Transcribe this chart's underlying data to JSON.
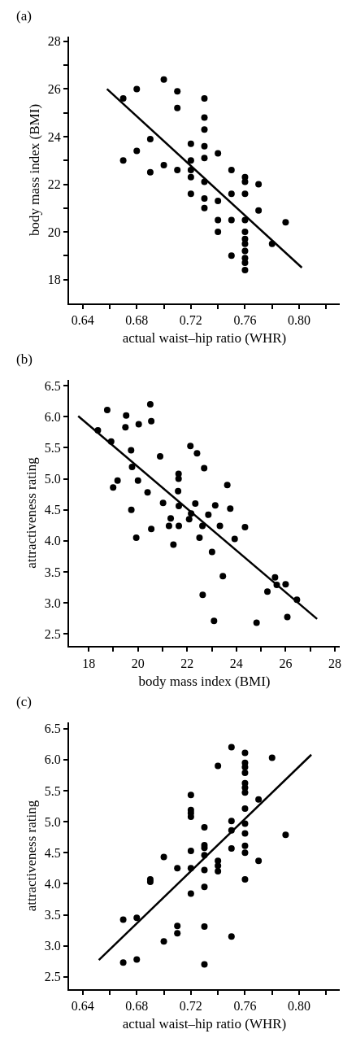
{
  "chart_data": [
    {
      "type": "scatter",
      "title": "(a)",
      "xlabel": "actual waist–hip ratio (WHR)",
      "ylabel": "body mass index (BMI)",
      "xlim": [
        0.63,
        0.83
      ],
      "ylim": [
        17,
        28.2
      ],
      "xticks": [
        0.64,
        {
          "value": 0.66,
          "label": null
        },
        0.68,
        {
          "value": 0.7,
          "label": null
        },
        0.72,
        {
          "value": 0.74,
          "label": null
        },
        0.76,
        {
          "value": 0.78,
          "label": null
        },
        {
          "value": 0.8,
          "label": "0.80"
        },
        {
          "value": 0.82,
          "label": null
        }
      ],
      "yticks": [
        18,
        {
          "value": 19,
          "label": null
        },
        20,
        {
          "value": 21,
          "label": null
        },
        22,
        {
          "value": 23,
          "label": null
        },
        24,
        {
          "value": 25,
          "label": null
        },
        26,
        {
          "value": 27,
          "label": null
        },
        28
      ],
      "marker": "circle",
      "series": [
        {
          "color": "#000000",
          "x": [
            0.67,
            0.67,
            0.68,
            0.68,
            0.69,
            0.69,
            0.7,
            0.7,
            0.71,
            0.71,
            0.71,
            0.72,
            0.72,
            0.72,
            0.72,
            0.72,
            0.73,
            0.73,
            0.73,
            0.73,
            0.73,
            0.73,
            0.73,
            0.73,
            0.74,
            0.74,
            0.74,
            0.74,
            0.75,
            0.75,
            0.75,
            0.75,
            0.76,
            0.76,
            0.76,
            0.76,
            0.76,
            0.76,
            0.76,
            0.76,
            0.76,
            0.76,
            0.76,
            0.77,
            0.77,
            0.78,
            0.79
          ],
          "values": [
            25.6,
            23.0,
            26.0,
            23.4,
            23.9,
            22.5,
            26.4,
            22.8,
            25.9,
            25.2,
            22.6,
            23.7,
            23.0,
            22.6,
            22.3,
            21.6,
            25.6,
            24.8,
            24.3,
            23.6,
            23.1,
            22.1,
            21.4,
            21.0,
            23.3,
            21.3,
            20.5,
            20.0,
            22.6,
            21.6,
            20.5,
            19.0,
            22.3,
            22.1,
            21.6,
            20.5,
            20.0,
            19.7,
            19.5,
            19.2,
            18.9,
            18.7,
            18.4,
            22.0,
            20.9,
            19.5,
            20.4
          ]
        },
        {
          "type": "line",
          "color": "#000000",
          "marker": "none",
          "x": [
            0.658,
            0.802
          ],
          "values": [
            26.0,
            18.5
          ]
        }
      ]
    },
    {
      "type": "scatter",
      "title": "(b)",
      "xlabel": "body mass index (BMI)",
      "ylabel": "attractiveness rating",
      "xlim": [
        17.2,
        28.2
      ],
      "ylim": [
        2.3,
        6.6
      ],
      "xticks": [
        18,
        {
          "value": 19,
          "label": null
        },
        20,
        {
          "value": 21,
          "label": null
        },
        22,
        {
          "value": 23,
          "label": null
        },
        24,
        {
          "value": 25,
          "label": null
        },
        26,
        {
          "value": 27,
          "label": null
        },
        28
      ],
      "yticks": [
        2.5,
        {
          "value": 3,
          "label": "3.0"
        },
        3.5,
        {
          "value": 4,
          "label": "4.0"
        },
        4.5,
        {
          "value": 5,
          "label": "5.0"
        },
        5.5,
        {
          "value": 6,
          "label": "6.0"
        },
        6.5
      ],
      "marker": "circle",
      "series": [
        {
          "color": "#000000",
          "x": [
            18.37,
            18.75,
            18.91,
            19.52,
            19.49,
            19.72,
            19.76,
            18.99,
            19.17,
            20.03,
            20.0,
            19.73,
            19.93,
            20.5,
            20.54,
            20.39,
            20.54,
            20.9,
            21.02,
            21.33,
            21.26,
            21.44,
            21.65,
            21.65,
            21.63,
            21.66,
            21.66,
            22.13,
            22.08,
            22.16,
            22.33,
            22.4,
            22.5,
            22.62,
            22.69,
            22.63,
            22.86,
            23.01,
            23.14,
            23.09,
            23.33,
            23.45,
            23.63,
            23.75,
            23.93,
            24.35,
            24.82,
            25.26,
            25.57,
            25.64,
            26.0,
            26.07,
            26.46
          ],
          "values": [
            5.78,
            6.11,
            5.6,
            6.02,
            5.83,
            5.46,
            5.19,
            4.86,
            4.97,
            5.88,
            4.97,
            4.5,
            4.05,
            6.2,
            5.93,
            4.78,
            4.19,
            5.36,
            4.61,
            4.36,
            4.24,
            3.94,
            5.08,
            5.0,
            4.8,
            4.56,
            4.24,
            5.53,
            4.35,
            4.44,
            4.6,
            5.41,
            4.05,
            4.24,
            5.17,
            3.13,
            4.42,
            3.82,
            4.57,
            2.71,
            4.24,
            3.43,
            4.9,
            4.52,
            4.03,
            4.22,
            2.68,
            3.18,
            3.41,
            3.29,
            3.3,
            2.77,
            3.05
          ]
        },
        {
          "type": "line",
          "color": "#000000",
          "marker": "none",
          "x": [
            17.57,
            27.28
          ],
          "values": [
            6.01,
            2.74
          ]
        }
      ]
    },
    {
      "type": "scatter",
      "title": "(c)",
      "xlabel": "actual waist–hip ratio (WHR)",
      "ylabel": "attractiveness rating",
      "xlim": [
        0.63,
        0.83
      ],
      "ylim": [
        2.3,
        6.6
      ],
      "xticks": [
        0.64,
        {
          "value": 0.66,
          "label": null
        },
        0.68,
        {
          "value": 0.7,
          "label": null
        },
        0.72,
        {
          "value": 0.74,
          "label": null
        },
        0.76,
        {
          "value": 0.78,
          "label": null
        },
        {
          "value": 0.8,
          "label": "0.80"
        },
        {
          "value": 0.82,
          "label": null
        }
      ],
      "yticks": [
        2.5,
        {
          "value": 3,
          "label": "3.0"
        },
        3.5,
        {
          "value": 4,
          "label": "4.0"
        },
        4.5,
        {
          "value": 5,
          "label": "5.0"
        },
        5.5,
        {
          "value": 6,
          "label": "6.0"
        },
        6.5
      ],
      "marker": "circle",
      "series": [
        {
          "color": "#000000",
          "x": [
            0.67,
            0.67,
            0.68,
            0.68,
            0.69,
            0.69,
            0.7,
            0.7,
            0.71,
            0.71,
            0.71,
            0.72,
            0.72,
            0.72,
            0.72,
            0.72,
            0.72,
            0.72,
            0.73,
            0.73,
            0.73,
            0.73,
            0.73,
            0.73,
            0.73,
            0.73,
            0.74,
            0.74,
            0.74,
            0.74,
            0.75,
            0.75,
            0.75,
            0.75,
            0.75,
            0.76,
            0.76,
            0.76,
            0.76,
            0.76,
            0.76,
            0.76,
            0.76,
            0.76,
            0.76,
            0.76,
            0.76,
            0.76,
            0.77,
            0.77,
            0.78,
            0.79
          ],
          "values": [
            3.42,
            2.73,
            3.45,
            2.78,
            4.07,
            4.03,
            4.43,
            3.07,
            4.25,
            3.32,
            3.2,
            5.43,
            5.19,
            5.14,
            5.08,
            4.53,
            4.25,
            3.84,
            4.91,
            4.62,
            4.58,
            4.46,
            4.22,
            3.95,
            3.31,
            2.7,
            5.9,
            4.37,
            4.29,
            4.2,
            6.2,
            5.01,
            4.86,
            4.57,
            3.15,
            6.11,
            5.95,
            5.88,
            5.79,
            5.62,
            5.55,
            5.47,
            5.21,
            4.97,
            4.81,
            4.61,
            4.5,
            4.07,
            5.36,
            4.37,
            6.03,
            4.79
          ]
        },
        {
          "type": "line",
          "color": "#000000",
          "marker": "none",
          "x": [
            0.652,
            0.809
          ],
          "values": [
            2.77,
            6.08
          ]
        }
      ]
    }
  ]
}
